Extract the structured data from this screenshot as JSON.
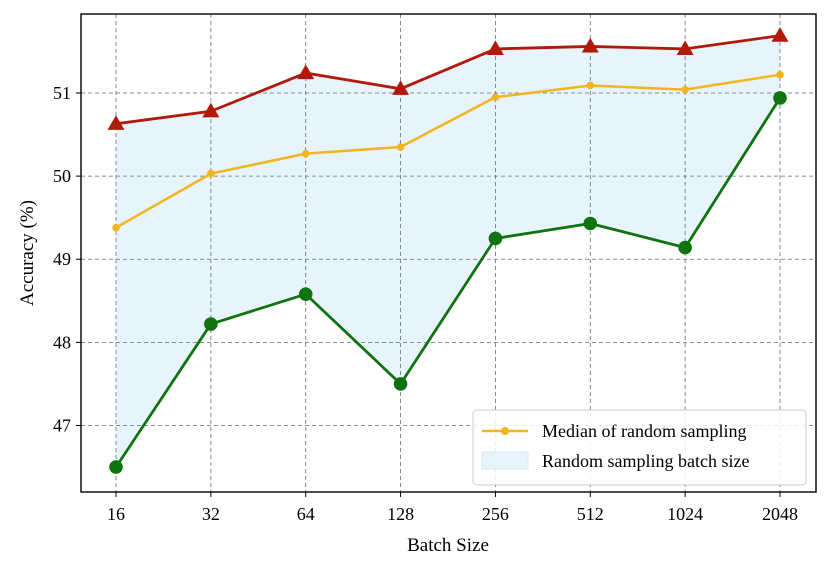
{
  "chart_data": {
    "type": "line",
    "categories": [
      "16",
      "32",
      "64",
      "128",
      "256",
      "512",
      "1024",
      "2048"
    ],
    "xlabel": "Batch Size",
    "ylabel": "Accuracy (%)",
    "ylim": [
      46.2,
      51.95
    ],
    "yticks": [
      47,
      48,
      49,
      50,
      51
    ],
    "grid": true,
    "legend_position": "lower-right",
    "series": [
      {
        "name": "",
        "role": "max",
        "color": "#b01a0a",
        "marker": "triangle",
        "values": [
          50.63,
          50.78,
          51.24,
          51.05,
          51.53,
          51.56,
          51.53,
          51.69
        ]
      },
      {
        "name": "Median of random sampling",
        "role": "median",
        "color": "#f2b51e",
        "marker": "circle",
        "values": [
          49.38,
          50.03,
          50.27,
          50.35,
          50.95,
          51.09,
          51.04,
          51.22
        ]
      },
      {
        "name": "",
        "role": "min",
        "color": "#0f7310",
        "marker": "circle",
        "values": [
          46.5,
          48.22,
          48.58,
          47.5,
          49.25,
          49.43,
          49.14,
          50.94
        ]
      }
    ],
    "band": {
      "name": "Random sampling batch size",
      "color": "#e8f4fc",
      "between": [
        "min",
        "max"
      ]
    }
  }
}
